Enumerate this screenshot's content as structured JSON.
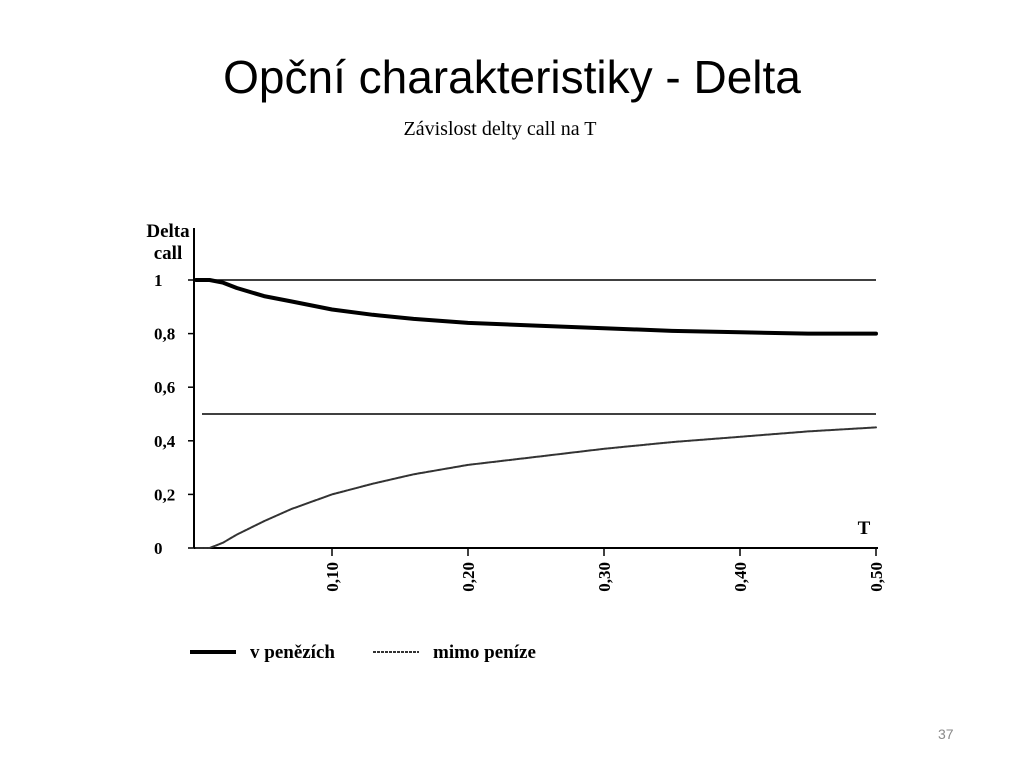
{
  "slide": {
    "title": "Opční charakteristiky - Delta",
    "subtitle": "Závislost delty call na T",
    "page_number": "37"
  },
  "chart_data": {
    "type": "line",
    "title": "",
    "ylabel": [
      "Delta",
      "call"
    ],
    "xlabel": "T",
    "xlim": [
      0,
      0.5
    ],
    "ylim": [
      0,
      1
    ],
    "x_ticks": [
      "0,10",
      "0,20",
      "0,30",
      "0,40",
      "0,50"
    ],
    "y_ticks": [
      "1",
      "0,8",
      "0,6",
      "0,4",
      "0,2",
      "0"
    ],
    "reference_lines": [
      {
        "y": 1.0
      },
      {
        "y": 0.5
      }
    ],
    "series": [
      {
        "name": "v penězích",
        "style": "thick",
        "color": "#000000",
        "x": [
          0,
          0.01,
          0.02,
          0.03,
          0.05,
          0.07,
          0.1,
          0.13,
          0.16,
          0.2,
          0.25,
          0.3,
          0.35,
          0.4,
          0.45,
          0.5
        ],
        "y": [
          1.0,
          1.0,
          0.99,
          0.97,
          0.94,
          0.92,
          0.89,
          0.87,
          0.855,
          0.84,
          0.83,
          0.82,
          0.81,
          0.805,
          0.8,
          0.8
        ]
      },
      {
        "name": "mimo peníze",
        "style": "thin",
        "color": "#333333",
        "x": [
          0,
          0.01,
          0.02,
          0.03,
          0.05,
          0.07,
          0.1,
          0.13,
          0.16,
          0.2,
          0.25,
          0.3,
          0.35,
          0.4,
          0.45,
          0.5
        ],
        "y": [
          0.0,
          0.0,
          0.02,
          0.05,
          0.1,
          0.145,
          0.2,
          0.24,
          0.275,
          0.31,
          0.34,
          0.37,
          0.395,
          0.415,
          0.435,
          0.45
        ]
      }
    ],
    "legend_placement": "bottom-left"
  }
}
